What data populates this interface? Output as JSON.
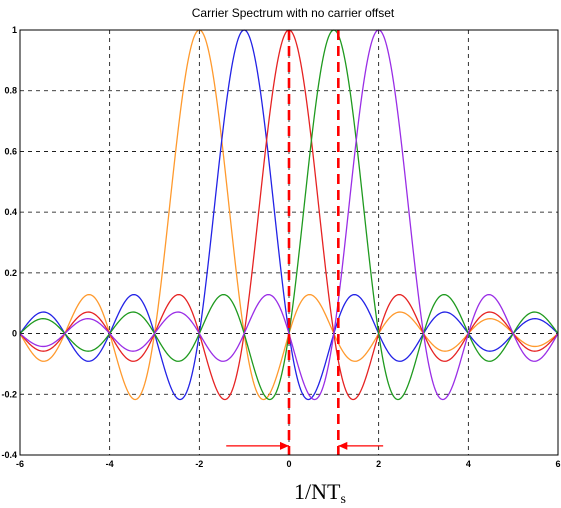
{
  "chart_data": {
    "type": "line",
    "title": "Carrier Spectrum with no carrier offset",
    "xlabel_main": "1/NT",
    "xlabel_sub": "s",
    "ylabel": "",
    "xlim": [
      -6,
      6
    ],
    "ylim": [
      -0.4,
      1
    ],
    "x_ticks": [
      -6,
      -4,
      -2,
      0,
      2,
      4,
      6
    ],
    "x_tick_labels": [
      "-6",
      "-4",
      "-2",
      "0",
      "2",
      "4",
      "6"
    ],
    "y_ticks": [
      -0.4,
      -0.2,
      0,
      0.2,
      0.4,
      0.6,
      0.8,
      1
    ],
    "y_tick_labels": [
      "-0.4",
      "-0.2",
      "0",
      "0.2",
      "0.4",
      "0.6",
      "0.8",
      "1"
    ],
    "grid": true,
    "grid_style": "dashed",
    "function": "sinc(x - center)",
    "series": [
      {
        "center": -2,
        "color": "#ff9a2e"
      },
      {
        "center": -1,
        "color": "#2323e6"
      },
      {
        "center": 0,
        "color": "#e62323"
      },
      {
        "center": 1,
        "color": "#1f9a1f"
      },
      {
        "center": 2,
        "color": "#9a2ee6"
      }
    ],
    "annotations": {
      "vertical_markers": [
        0,
        1.1
      ],
      "marker_color": "#ff0000",
      "arrows": [
        {
          "from_x": -1.4,
          "to_x": 0,
          "y": -0.37
        },
        {
          "from_x": 2.1,
          "to_x": 1.1,
          "y": -0.37
        }
      ]
    }
  }
}
